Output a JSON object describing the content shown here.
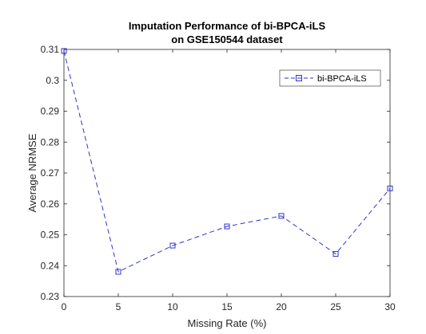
{
  "chart_data": {
    "type": "line",
    "title_lines": [
      "Imputation Performance of bi-BPCA-iLS",
      "on GSE150544 dataset"
    ],
    "xlabel": "Missing Rate (%)",
    "ylabel": "Average NRMSE",
    "xlim": [
      0,
      30
    ],
    "ylim": [
      0.23,
      0.31
    ],
    "xticks": [
      0,
      5,
      10,
      15,
      20,
      25,
      30
    ],
    "xtick_labels": [
      "0",
      "5",
      "10",
      "15",
      "20",
      "25",
      "30"
    ],
    "yticks": [
      0.23,
      0.24,
      0.25,
      0.26,
      0.27,
      0.28,
      0.29,
      0.3,
      0.31
    ],
    "ytick_labels": [
      "0.23",
      "0.24",
      "0.25",
      "0.26",
      "0.27",
      "0.28",
      "0.29",
      "0.3",
      "0.31"
    ],
    "grid": false,
    "legend_position": "top-right",
    "series": [
      {
        "name": "bi-BPCA-iLS",
        "color": "#3333cc",
        "line_style": "dashed",
        "marker": "square",
        "x": [
          0,
          5,
          10,
          15,
          20,
          25,
          30
        ],
        "y": [
          0.3095,
          0.238,
          0.2465,
          0.2527,
          0.2561,
          0.2438,
          0.265
        ]
      }
    ]
  }
}
